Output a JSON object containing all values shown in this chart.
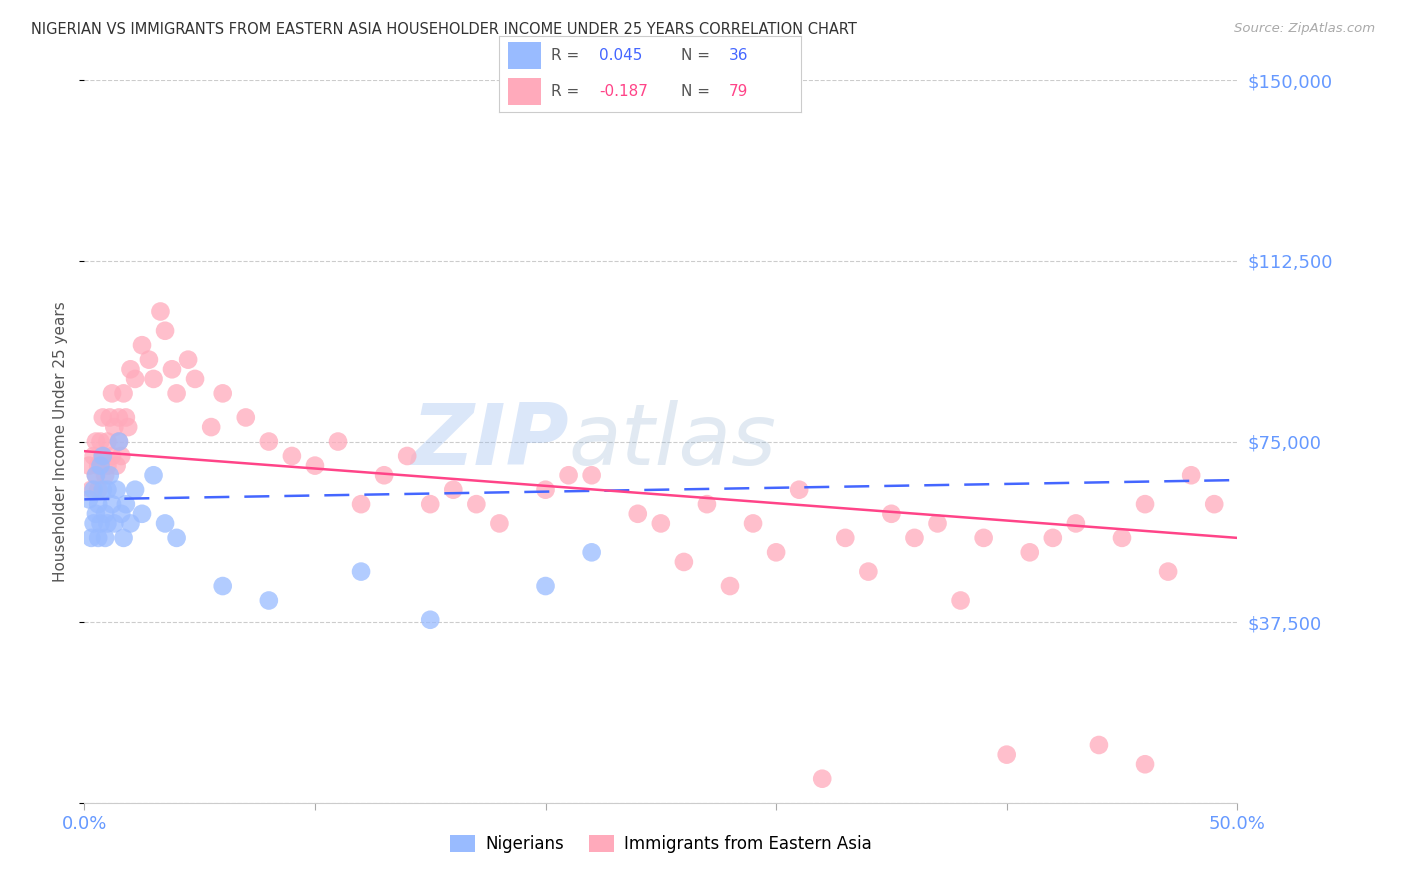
{
  "title": "NIGERIAN VS IMMIGRANTS FROM EASTERN ASIA HOUSEHOLDER INCOME UNDER 25 YEARS CORRELATION CHART",
  "source": "Source: ZipAtlas.com",
  "ylabel": "Householder Income Under 25 years",
  "xlim": [
    0.0,
    0.5
  ],
  "ylim": [
    0,
    150000
  ],
  "yticks": [
    0,
    37500,
    75000,
    112500,
    150000
  ],
  "ytick_labels": [
    "",
    "$37,500",
    "$75,000",
    "$112,500",
    "$150,000"
  ],
  "xticks": [
    0.0,
    0.1,
    0.2,
    0.3,
    0.4,
    0.5
  ],
  "xtick_labels": [
    "0.0%",
    "",
    "",
    "",
    "",
    "50.0%"
  ],
  "axis_label_color": "#6699ff",
  "grid_color": "#cccccc",
  "watermark_zip": "ZIP",
  "watermark_atlas": "atlas",
  "color_blue": "#99bbff",
  "color_pink": "#ffaabb",
  "line_blue": "#4466ff",
  "line_pink": "#ff4488",
  "blue_R": "0.045",
  "blue_N": "36",
  "pink_R": "-0.187",
  "pink_N": "79",
  "blue_scatter_x": [
    0.002,
    0.003,
    0.004,
    0.004,
    0.005,
    0.005,
    0.006,
    0.006,
    0.007,
    0.007,
    0.008,
    0.008,
    0.009,
    0.009,
    0.01,
    0.01,
    0.011,
    0.012,
    0.013,
    0.014,
    0.015,
    0.016,
    0.017,
    0.018,
    0.02,
    0.022,
    0.025,
    0.03,
    0.035,
    0.04,
    0.06,
    0.08,
    0.12,
    0.15,
    0.2,
    0.22
  ],
  "blue_scatter_y": [
    63000,
    55000,
    58000,
    65000,
    60000,
    68000,
    55000,
    62000,
    70000,
    58000,
    65000,
    72000,
    60000,
    55000,
    65000,
    58000,
    68000,
    62000,
    58000,
    65000,
    75000,
    60000,
    55000,
    62000,
    58000,
    65000,
    60000,
    68000,
    58000,
    55000,
    45000,
    42000,
    48000,
    38000,
    45000,
    52000
  ],
  "pink_scatter_x": [
    0.002,
    0.003,
    0.004,
    0.005,
    0.005,
    0.006,
    0.006,
    0.007,
    0.008,
    0.008,
    0.009,
    0.01,
    0.01,
    0.011,
    0.012,
    0.012,
    0.013,
    0.014,
    0.015,
    0.015,
    0.016,
    0.017,
    0.018,
    0.019,
    0.02,
    0.022,
    0.025,
    0.028,
    0.03,
    0.033,
    0.035,
    0.038,
    0.04,
    0.045,
    0.048,
    0.055,
    0.06,
    0.07,
    0.08,
    0.09,
    0.1,
    0.11,
    0.12,
    0.13,
    0.15,
    0.16,
    0.18,
    0.2,
    0.22,
    0.25,
    0.27,
    0.29,
    0.31,
    0.33,
    0.35,
    0.37,
    0.39,
    0.41,
    0.43,
    0.45,
    0.46,
    0.47,
    0.48,
    0.49,
    0.34,
    0.36,
    0.28,
    0.3,
    0.42,
    0.26,
    0.14,
    0.17,
    0.21,
    0.24,
    0.38,
    0.4,
    0.32,
    0.44,
    0.46
  ],
  "pink_scatter_y": [
    70000,
    65000,
    72000,
    68000,
    75000,
    65000,
    70000,
    75000,
    72000,
    80000,
    68000,
    75000,
    70000,
    80000,
    85000,
    72000,
    78000,
    70000,
    80000,
    75000,
    72000,
    85000,
    80000,
    78000,
    90000,
    88000,
    95000,
    92000,
    88000,
    102000,
    98000,
    90000,
    85000,
    92000,
    88000,
    78000,
    85000,
    80000,
    75000,
    72000,
    70000,
    75000,
    62000,
    68000,
    62000,
    65000,
    58000,
    65000,
    68000,
    58000,
    62000,
    58000,
    65000,
    55000,
    60000,
    58000,
    55000,
    52000,
    58000,
    55000,
    62000,
    48000,
    68000,
    62000,
    48000,
    55000,
    45000,
    52000,
    55000,
    50000,
    72000,
    62000,
    68000,
    60000,
    42000,
    10000,
    5000,
    12000,
    8000
  ]
}
